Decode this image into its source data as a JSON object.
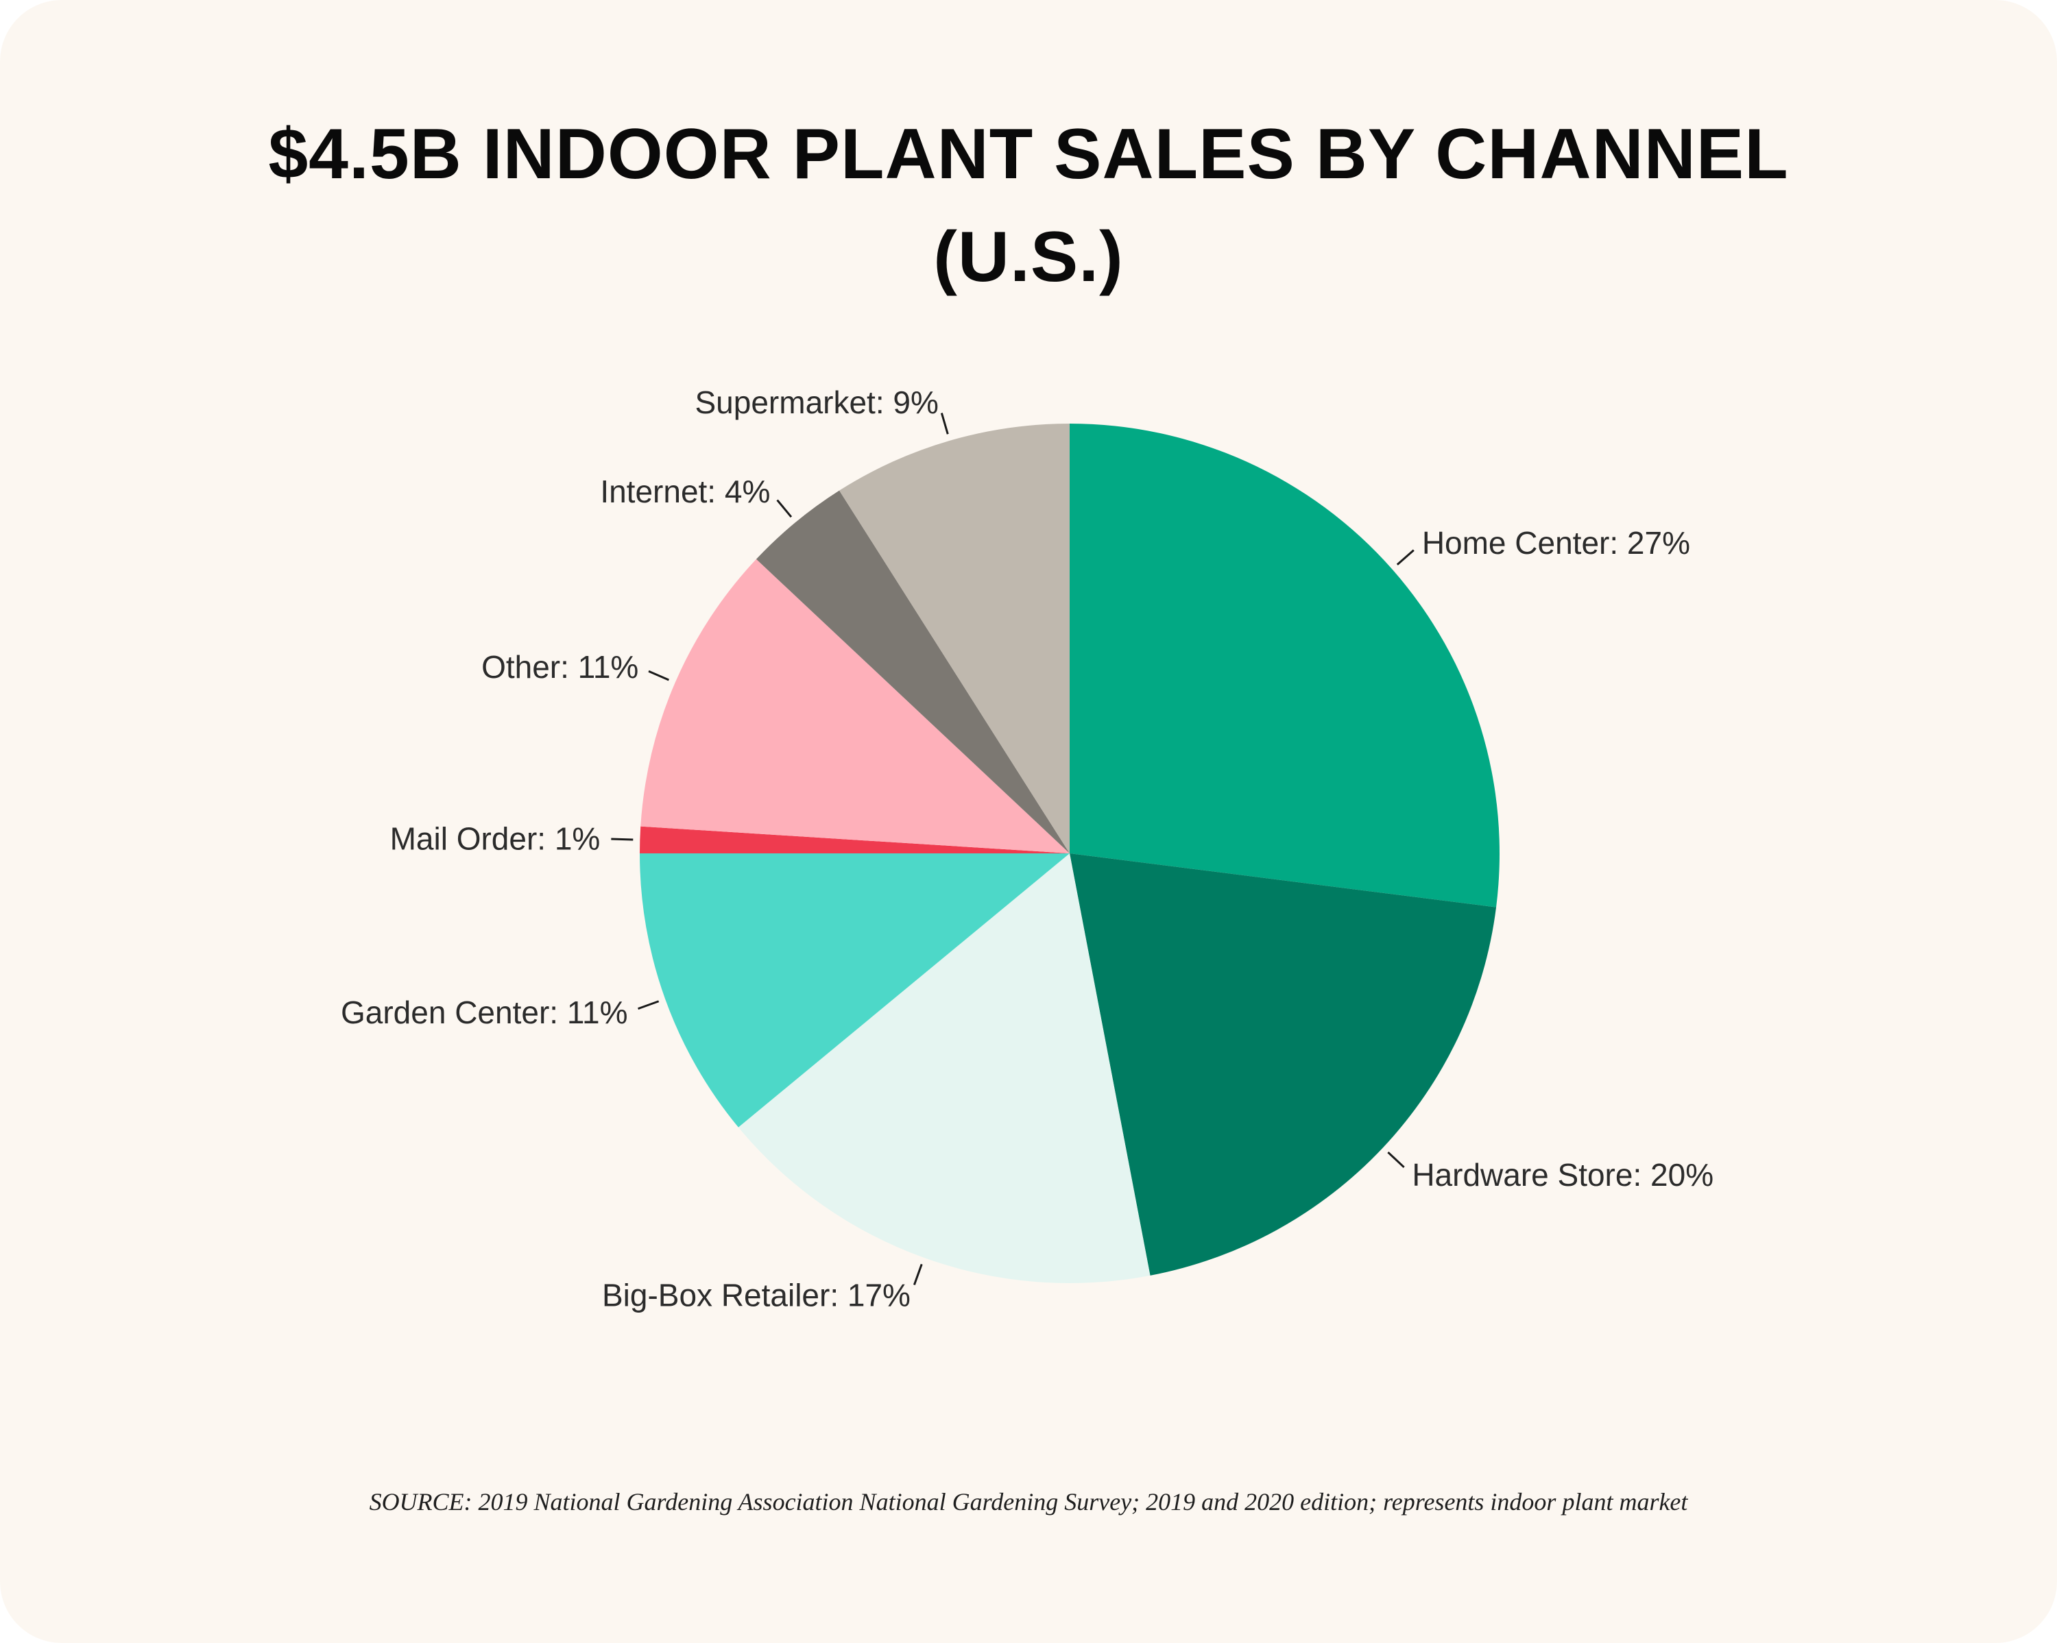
{
  "title_line1": "$4.5B INDOOR PLANT SALES BY CHANNEL",
  "title_line2": "(U.S.)",
  "source": "SOURCE: 2019 National Gardening Association National Gardening Survey; 2019 and 2020 edition; represents indoor plant market",
  "chart_data": {
    "type": "pie",
    "title": "$4.5B INDOOR PLANT SALES BY CHANNEL (U.S.)",
    "start": "12 o'clock, clockwise",
    "slices": [
      {
        "label": "Home Center: 27%",
        "value": 27,
        "color": "#02a984"
      },
      {
        "label": "Hardware Store: 20%",
        "value": 20,
        "color": "#007b61"
      },
      {
        "label": "Big-Box Retailer: 17%",
        "value": 17,
        "color": "#e5f5f1"
      },
      {
        "label": "Garden Center: 11%",
        "value": 11,
        "color": "#4dd8c8"
      },
      {
        "label": "Mail Order: 1%",
        "value": 1,
        "color": "#ef3b4f"
      },
      {
        "label": "Other: 11%",
        "value": 11,
        "color": "#feb0ba"
      },
      {
        "label": "Internet: 4%",
        "value": 4,
        "color": "#7c7872"
      },
      {
        "label": "Supermarket: 9%",
        "value": 9,
        "color": "#bfb8ae"
      }
    ]
  }
}
